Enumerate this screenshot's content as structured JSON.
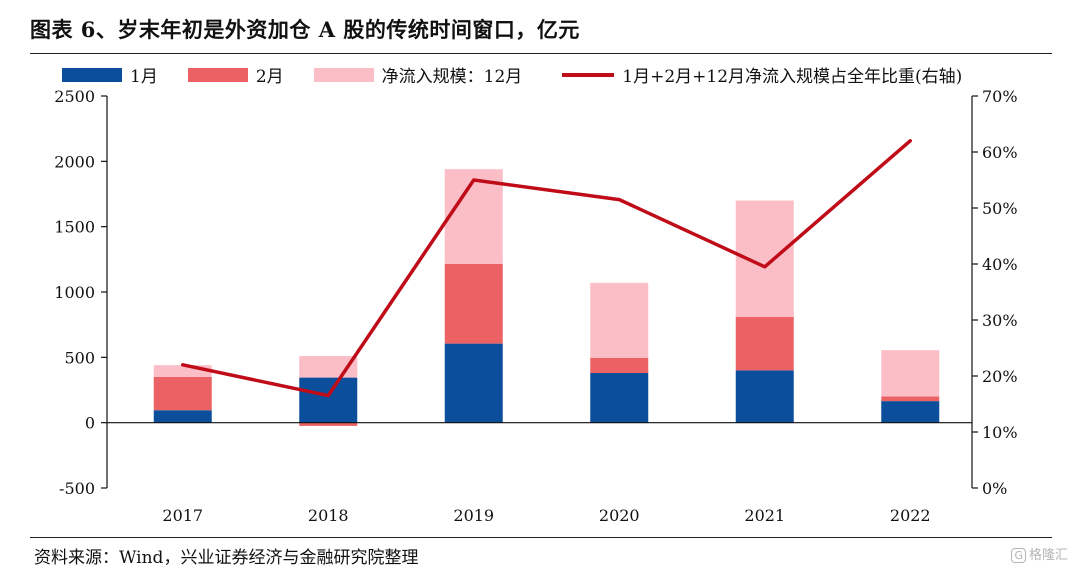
{
  "title": "图表 6、岁末年初是外资加仓 A 股的传统时间窗口，亿元",
  "source": "资料来源：Wind，兴业证券经济与金融研究院整理",
  "watermark": "格隆汇",
  "chart_data": {
    "type": "bar",
    "stacked": true,
    "categories": [
      "2017",
      "2018",
      "2019",
      "2020",
      "2021",
      "2022"
    ],
    "ylim": [
      -500,
      2500
    ],
    "yticks": [
      -500,
      0,
      500,
      1000,
      1500,
      2000,
      2500
    ],
    "y2lim": [
      0,
      70
    ],
    "y2ticks": [
      0,
      10,
      20,
      30,
      40,
      50,
      60,
      70
    ],
    "y2_unit": "%",
    "legend_position": "top",
    "grid": false,
    "series": [
      {
        "name": "1月",
        "type": "bar",
        "axis": "left",
        "color": "#0b4e9b",
        "values": [
          95,
          345,
          605,
          380,
          400,
          165
        ]
      },
      {
        "name": "2月",
        "type": "bar",
        "axis": "left",
        "color": "#ec6264",
        "values": [
          255,
          -25,
          610,
          115,
          410,
          35
        ]
      },
      {
        "name": "净流入规模：12月",
        "type": "bar",
        "axis": "left",
        "color": "#fbbec6",
        "values": [
          90,
          165,
          725,
          575,
          890,
          355
        ]
      },
      {
        "name": "1月+2月+12月净流入规模占全年比重(右轴)",
        "type": "line",
        "axis": "right",
        "color": "#c00c19",
        "values": [
          22,
          16.5,
          55,
          51.5,
          39.5,
          62
        ]
      }
    ]
  }
}
